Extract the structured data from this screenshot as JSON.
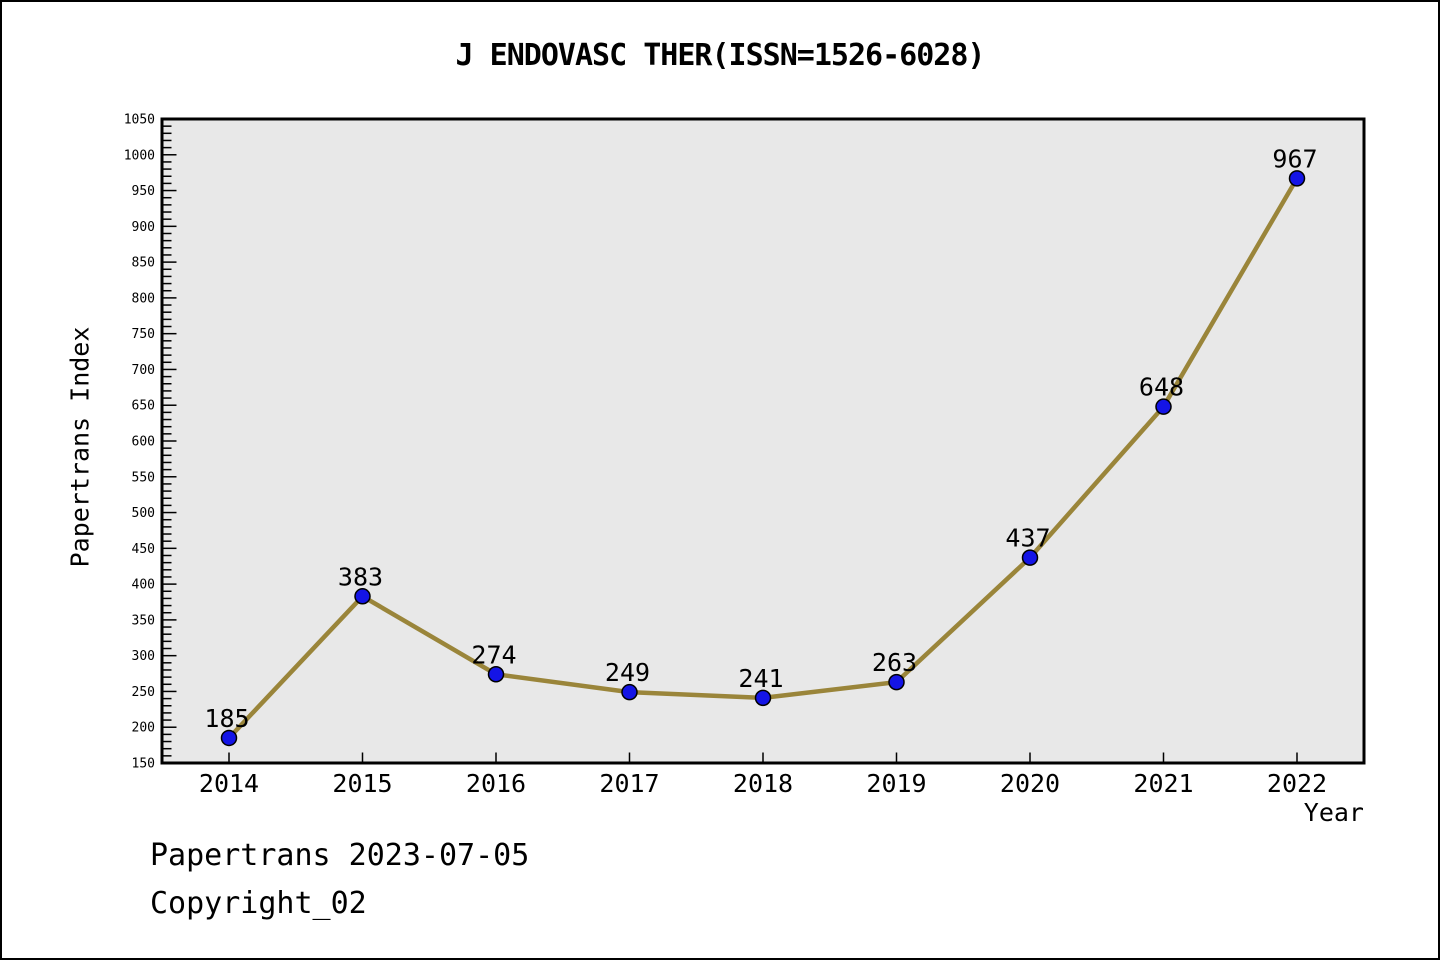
{
  "title": "J ENDOVASC THER(ISSN=1526-6028)",
  "footer": {
    "line1": "Papertrans 2023-07-05",
    "line2": "Copyright_02"
  },
  "chart_data": {
    "type": "line",
    "title": "J ENDOVASC THER(ISSN=1526-6028)",
    "xlabel": "Year",
    "ylabel": "Papertrans Index",
    "categories": [
      "2014",
      "2015",
      "2016",
      "2017",
      "2018",
      "2019",
      "2020",
      "2021",
      "2022"
    ],
    "values": [
      185,
      383,
      274,
      249,
      241,
      263,
      437,
      648,
      967
    ],
    "point_labels_shown": true,
    "ylim": [
      150,
      1050
    ],
    "y_ticks": [
      150,
      200,
      250,
      300,
      350,
      400,
      450,
      500,
      550,
      600,
      650,
      700,
      750,
      800,
      850,
      900,
      950,
      1000,
      1050
    ],
    "y_minor_tick_step": 10,
    "grid": false,
    "legend": "none",
    "colors": {
      "line": "#9a853a",
      "marker_fill": "#1414e6",
      "marker_edge": "#000000",
      "plot_background": "#e8e8e8",
      "frame": "#000000",
      "text": "#000000"
    }
  }
}
